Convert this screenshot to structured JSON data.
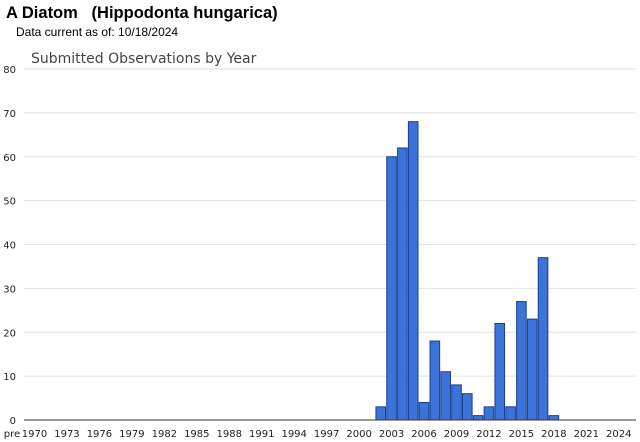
{
  "header": {
    "title": "A Diatom   (Hippodonta hungarica)",
    "subtitle": "Data current as of: 10/18/2024"
  },
  "chart_data": {
    "type": "bar",
    "title": "Submitted Observations by Year",
    "xlabel": "",
    "ylabel": "",
    "ylim": [
      0,
      80
    ],
    "yticks": [
      0,
      10,
      20,
      30,
      40,
      50,
      60,
      70,
      80
    ],
    "grid": true,
    "bar_color": "#3b73d9",
    "bar_edge_color": "#1a3f8f",
    "x_tick_labels": [
      "pre",
      "1970",
      "1973",
      "1976",
      "1979",
      "1982",
      "1985",
      "1988",
      "1991",
      "1994",
      "1997",
      "2000",
      "2003",
      "2006",
      "2009",
      "2012",
      "2015",
      "2018",
      "2021",
      "2024"
    ],
    "categories": [
      "pre",
      "1970",
      "1971",
      "1972",
      "1973",
      "1974",
      "1975",
      "1976",
      "1977",
      "1978",
      "1979",
      "1980",
      "1981",
      "1982",
      "1983",
      "1984",
      "1985",
      "1986",
      "1987",
      "1988",
      "1989",
      "1990",
      "1991",
      "1992",
      "1993",
      "1994",
      "1995",
      "1996",
      "1997",
      "1998",
      "1999",
      "2000",
      "2001",
      "2002",
      "2003",
      "2004",
      "2005",
      "2006",
      "2007",
      "2008",
      "2009",
      "2010",
      "2011",
      "2012",
      "2013",
      "2014",
      "2015",
      "2016",
      "2017",
      "2018",
      "2019",
      "2020",
      "2021",
      "2022",
      "2023",
      "2024"
    ],
    "values": [
      0,
      0,
      0,
      0,
      0,
      0,
      0,
      0,
      0,
      0,
      0,
      0,
      0,
      0,
      0,
      0,
      0,
      0,
      0,
      0,
      0,
      0,
      0,
      0,
      0,
      0,
      0,
      0,
      0,
      0,
      0,
      0,
      0,
      3,
      60,
      62,
      68,
      4,
      18,
      11,
      8,
      6,
      1,
      3,
      22,
      3,
      27,
      23,
      37,
      1,
      0,
      0,
      0,
      0,
      0,
      0
    ]
  }
}
